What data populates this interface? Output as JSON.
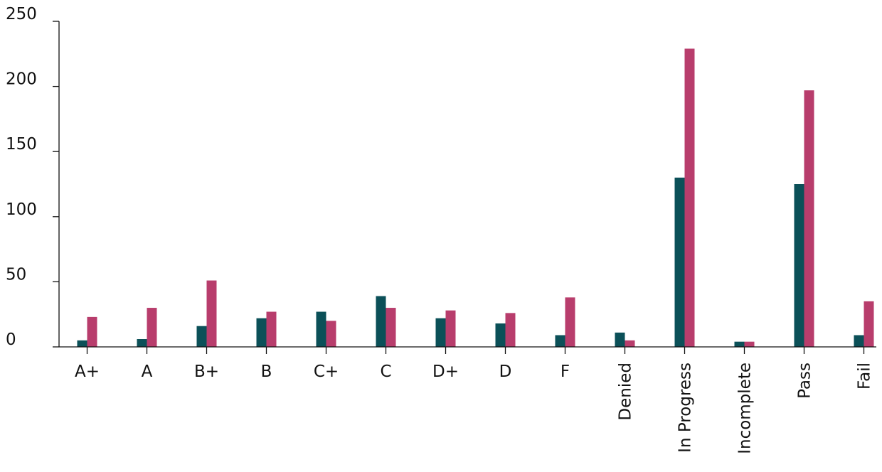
{
  "chart_data": {
    "type": "bar",
    "title": "",
    "xlabel": "",
    "ylabel": "",
    "ylim": [
      0,
      250
    ],
    "yticks": [
      "0",
      "50",
      "100",
      "150",
      "200",
      "250"
    ],
    "grid": false,
    "legend": "none",
    "categories": [
      "A+",
      "A",
      "B+",
      "B",
      "C+",
      "C",
      "D+",
      "D",
      "F",
      "Denied",
      "In Progress",
      "Incomplete",
      "Pass",
      "Fail"
    ],
    "rotated_categories": [
      "Denied",
      "In Progress",
      "Incomplete",
      "Pass",
      "Fail"
    ],
    "series": [
      {
        "color": "#0b5058",
        "values": [
          5,
          6,
          16,
          22,
          27,
          39,
          22,
          18,
          9,
          11,
          130,
          4,
          125,
          9
        ]
      },
      {
        "color": "#b83d6c",
        "values": [
          23,
          30,
          51,
          27,
          20,
          30,
          28,
          26,
          38,
          5,
          229,
          4,
          197,
          35
        ]
      }
    ]
  }
}
